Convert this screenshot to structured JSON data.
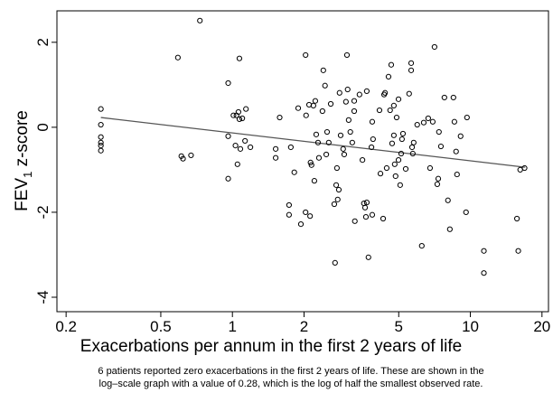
{
  "chart_data": {
    "type": "scatter",
    "xlabel": "Exacerbations per annum in the first 2 years of life",
    "ylabel": [
      "FEV",
      "1",
      " z-score"
    ],
    "note": [
      "6 patients reported zero exacerbations in the first 2 years of life. These are shown in the",
      "log–scale graph with a value of 0.28, which is the log of half the smallest observed rate."
    ],
    "xscale": "log",
    "xlim": [
      0.183,
      21.3
    ],
    "ylim": [
      -4.34,
      2.74
    ],
    "xticks": [
      0.2,
      0.5,
      1,
      2,
      5,
      10,
      20
    ],
    "yticks": [
      -4,
      -2,
      0,
      2
    ],
    "color": "#000000",
    "x": [
      0.28,
      0.28,
      0.28,
      0.28,
      0.28,
      0.28,
      0.59,
      0.61,
      0.62,
      0.67,
      0.73,
      0.96,
      0.96,
      0.96,
      1.01,
      1.04,
      1.06,
      1.1,
      1.07,
      1.03,
      1.05,
      1.08,
      1.13,
      1.07,
      1.14,
      1.19,
      1.52,
      1.52,
      1.58,
      1.73,
      1.73,
      1.76,
      1.82,
      1.89,
      1.94,
      2.04,
      2.03,
      2.1,
      2.03,
      2.12,
      2.13,
      2.15,
      2.19,
      2.21,
      2.23,
      2.25,
      2.29,
      2.31,
      2.41,
      2.39,
      2.45,
      2.48,
      2.5,
      2.54,
      2.59,
      2.68,
      2.7,
      2.73,
      2.75,
      2.77,
      2.8,
      2.82,
      2.85,
      2.92,
      2.95,
      3.05,
      3.0,
      3.03,
      3.08,
      3.13,
      3.19,
      3.25,
      3.25,
      3.27,
      3.42,
      3.52,
      3.57,
      3.61,
      3.64,
      3.67,
      3.67,
      3.73,
      3.84,
      3.87,
      3.87,
      3.9,
      4.15,
      4.19,
      4.3,
      4.34,
      4.38,
      4.45,
      4.53,
      4.6,
      4.65,
      4.69,
      4.77,
      4.77,
      4.81,
      4.85,
      4.9,
      4.99,
      4.99,
      5.07,
      5.12,
      5.16,
      5.21,
      5.35,
      5.53,
      5.64,
      5.64,
      5.69,
      5.78,
      5.73,
      5.98,
      6.25,
      6.37,
      6.65,
      6.77,
      6.95,
      7.07,
      7.26,
      7.33,
      7.38,
      7.52,
      7.78,
      8.05,
      8.2,
      8.57,
      8.49,
      8.71,
      8.79,
      9.1,
      9.59,
      9.68,
      11.4,
      11.4,
      15.7,
      15.9,
      16.2,
      16.9
    ],
    "values": [
      0.43,
      0.06,
      -0.23,
      -0.36,
      -0.43,
      -0.55,
      1.64,
      -0.68,
      -0.74,
      -0.66,
      2.51,
      1.04,
      -0.21,
      -1.21,
      0.28,
      0.28,
      0.36,
      0.21,
      0.19,
      -0.43,
      -0.87,
      -0.51,
      -0.32,
      1.62,
      0.43,
      -0.47,
      -0.51,
      -0.72,
      0.23,
      -1.83,
      -2.06,
      -0.47,
      -1.06,
      0.45,
      -2.28,
      0.28,
      1.7,
      0.53,
      -2.0,
      -2.09,
      -0.83,
      -0.89,
      0.51,
      -1.26,
      0.62,
      -0.17,
      -0.36,
      -0.72,
      1.34,
      0.38,
      0.98,
      -0.64,
      -0.11,
      -0.36,
      0.55,
      -1.81,
      -3.19,
      -1.36,
      -0.96,
      -1.7,
      -1.47,
      0.81,
      -0.19,
      -0.51,
      -0.64,
      0.89,
      0.6,
      1.7,
      0.17,
      -0.11,
      -0.36,
      0.38,
      0.62,
      -2.21,
      0.77,
      -0.77,
      -1.79,
      -1.89,
      -2.11,
      -1.77,
      0.85,
      -3.06,
      -0.47,
      -2.06,
      0.13,
      -0.28,
      0.4,
      -1.09,
      -2.15,
      0.77,
      0.81,
      -0.96,
      1.19,
      0.4,
      1.47,
      -0.38,
      0.51,
      -0.19,
      -0.87,
      -1.15,
      0.23,
      -0.77,
      0.66,
      -1.36,
      -0.62,
      -0.28,
      -0.15,
      -0.98,
      0.79,
      1.34,
      1.51,
      -0.47,
      -0.36,
      -0.62,
      0.06,
      -2.79,
      0.11,
      0.21,
      -0.96,
      0.13,
      1.89,
      -1.34,
      -1.21,
      -0.11,
      -0.45,
      0.7,
      -1.72,
      -2.4,
      0.13,
      0.7,
      -0.57,
      -1.11,
      -0.21,
      -2.0,
      0.23,
      -3.43,
      -2.91,
      -2.15,
      -2.91,
      -1.0,
      -0.96
    ],
    "fit": {
      "x": [
        0.28,
        17
      ],
      "y": [
        0.23,
        -0.94
      ],
      "color": "#555555"
    }
  }
}
